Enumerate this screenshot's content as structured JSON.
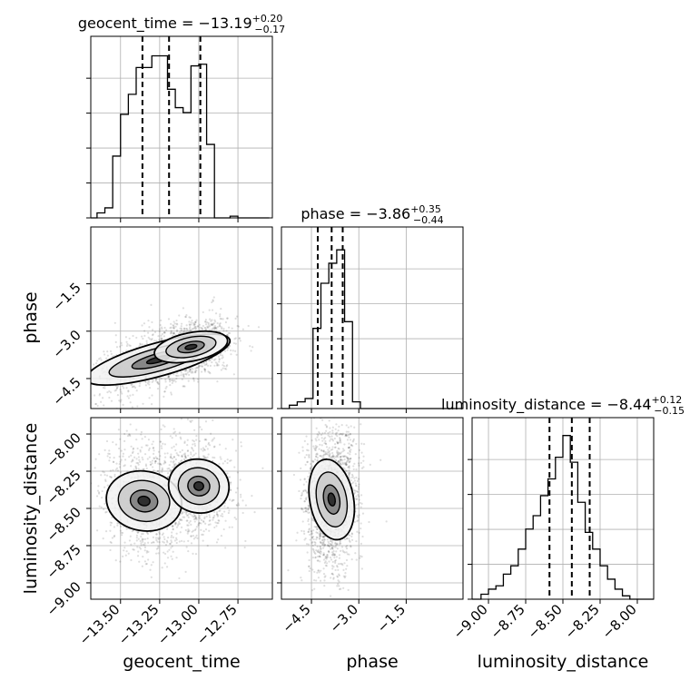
{
  "chart_data": {
    "type": "corner",
    "parameters": [
      "geocent_time",
      "phase",
      "luminosity_distance"
    ],
    "grid": true,
    "titles": [
      {
        "param": "geocent_time",
        "label": "geocent_time = ",
        "median": "−13.19",
        "plus": "+0.20",
        "minus": "−0.17"
      },
      {
        "param": "phase",
        "label": "phase = ",
        "median": "−3.86",
        "plus": "+0.35",
        "minus": "−0.44"
      },
      {
        "param": "luminosity_distance",
        "label": "luminosity_distance = ",
        "median": "−8.44",
        "plus": "+0.12",
        "minus": "−0.15"
      }
    ],
    "ranges": {
      "geocent_time": [
        -13.69,
        -12.53
      ],
      "phase": [
        -5.45,
        0.3
      ],
      "luminosity_distance": [
        -9.11,
        -7.89
      ]
    },
    "ticks": {
      "geocent_time": {
        "values": [
          -13.5,
          -13.25,
          -13.0,
          -12.75
        ],
        "labels": [
          "−13.50",
          "−13.25",
          "−13.00",
          "−12.75"
        ]
      },
      "phase": {
        "values": [
          -4.5,
          -3.0,
          -1.5
        ],
        "labels": [
          "−4.5",
          "−3.0",
          "−1.5"
        ]
      },
      "luminosity_distance": {
        "values": [
          -9.0,
          -8.75,
          -8.5,
          -8.25,
          -8.0
        ],
        "labels": [
          "−9.00",
          "−8.75",
          "−8.50",
          "−8.25",
          "−8.00"
        ]
      }
    },
    "quantiles": {
      "geocent_time": [
        -13.36,
        -13.19,
        -12.99
      ],
      "phase": [
        -4.3,
        -3.86,
        -3.51
      ],
      "luminosity_distance": [
        -8.59,
        -8.44,
        -8.32
      ]
    },
    "histograms": {
      "geocent_time": {
        "edges": [
          -13.69,
          -13.65,
          -13.6,
          -13.55,
          -13.5,
          -13.45,
          -13.4,
          -13.35,
          -13.3,
          -13.25,
          -13.2,
          -13.15,
          -13.1,
          -13.05,
          -13.0,
          -12.95,
          -12.9,
          -12.85,
          -12.8,
          -12.75,
          -12.7,
          -12.65,
          -12.6,
          -12.55
        ],
        "counts": [
          0.0,
          0.03,
          0.06,
          0.37,
          0.62,
          0.74,
          0.9,
          0.9,
          0.97,
          0.97,
          0.77,
          0.66,
          0.63,
          0.91,
          0.92,
          0.44,
          0.0,
          0.0,
          0.01,
          0.0,
          0.0,
          0.0,
          0.0
        ]
      },
      "phase": {
        "edges": [
          -5.45,
          -5.2,
          -4.95,
          -4.7,
          -4.45,
          -4.2,
          -3.95,
          -3.7,
          -3.45,
          -3.2,
          -2.95,
          -2.7,
          -2.45,
          -2.2,
          -1.95,
          -1.7,
          -1.45,
          -1.2,
          -0.95,
          -0.7,
          -0.45,
          -0.2,
          0.05,
          0.3
        ],
        "counts": [
          0.0,
          0.02,
          0.04,
          0.06,
          0.48,
          0.75,
          0.87,
          0.95,
          0.52,
          0.04,
          0.0,
          0.0,
          0.0,
          0.0,
          0.0,
          0.0,
          0.0,
          0.0,
          0.0,
          0.0,
          0.0,
          0.0,
          0.0
        ]
      },
      "luminosity_distance": {
        "edges": [
          -9.11,
          -9.05,
          -9.0,
          -8.95,
          -8.9,
          -8.85,
          -8.8,
          -8.75,
          -8.7,
          -8.65,
          -8.6,
          -8.55,
          -8.5,
          -8.45,
          -8.4,
          -8.35,
          -8.3,
          -8.25,
          -8.2,
          -8.15,
          -8.1,
          -8.05,
          -8.0,
          -7.95,
          -7.89
        ],
        "counts": [
          0.0,
          0.03,
          0.06,
          0.08,
          0.15,
          0.2,
          0.3,
          0.42,
          0.5,
          0.62,
          0.72,
          0.85,
          0.98,
          0.82,
          0.58,
          0.4,
          0.3,
          0.2,
          0.12,
          0.06,
          0.02,
          0.0,
          0.0,
          0.0
        ]
      }
    },
    "density_2d": [
      {
        "x": "geocent_time",
        "y": "phase",
        "modes": [
          {
            "x": -13.26,
            "y": -3.9,
            "sx": 0.16,
            "sy": 0.35,
            "rho": 0.7,
            "w": 1.0
          },
          {
            "x": -13.05,
            "y": -3.5,
            "sx": 0.09,
            "sy": 0.25,
            "rho": 0.4,
            "w": 0.8
          }
        ],
        "points": 1800
      },
      {
        "x": "geocent_time",
        "y": "luminosity_distance",
        "modes": [
          {
            "x": -13.35,
            "y": -8.45,
            "sx": 0.1,
            "sy": 0.1,
            "rho": -0.2,
            "w": 1.0
          },
          {
            "x": -13.0,
            "y": -8.35,
            "sx": 0.08,
            "sy": 0.09,
            "rho": -0.2,
            "w": 0.9
          }
        ],
        "points": 1800
      },
      {
        "x": "phase",
        "y": "luminosity_distance",
        "modes": [
          {
            "x": -3.86,
            "y": -8.44,
            "sx": 0.3,
            "sy": 0.13,
            "rho": 0.1,
            "w": 1.0
          }
        ],
        "points": 1800
      }
    ],
    "xlabels": [
      "geocent_time",
      "phase",
      "luminosity_distance"
    ],
    "ylabels": [
      "",
      "phase",
      "luminosity_distance"
    ]
  }
}
